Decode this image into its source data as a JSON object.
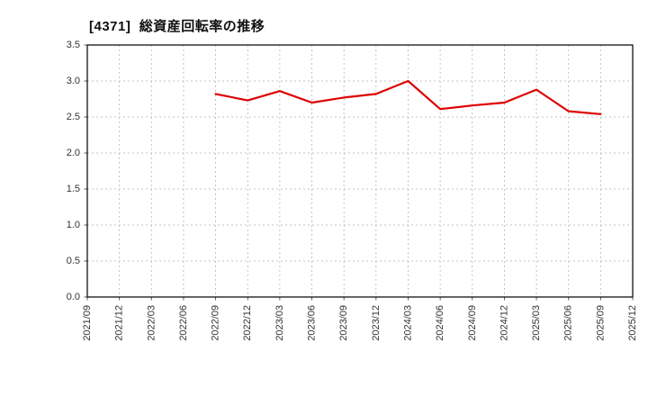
{
  "chart_data": {
    "type": "line",
    "title": "[4371]  総資産回転率の推移",
    "categories": [
      "2021/09",
      "2021/12",
      "2022/03",
      "2022/06",
      "2022/09",
      "2022/12",
      "2023/03",
      "2023/06",
      "2023/09",
      "2023/12",
      "2024/03",
      "2024/06",
      "2024/09",
      "2024/12",
      "2025/03",
      "2025/06",
      "2025/09",
      "2025/12"
    ],
    "series": [
      {
        "name": "総資産回転率",
        "color": "#dd0000",
        "points": [
          {
            "x": "2022/09",
            "y": 2.82
          },
          {
            "x": "2022/12",
            "y": 2.73
          },
          {
            "x": "2023/03",
            "y": 2.86
          },
          {
            "x": "2023/06",
            "y": 2.7
          },
          {
            "x": "2023/09",
            "y": 2.77
          },
          {
            "x": "2023/12",
            "y": 2.82
          },
          {
            "x": "2024/03",
            "y": 3.0
          },
          {
            "x": "2024/06",
            "y": 2.61
          },
          {
            "x": "2024/09",
            "y": 2.66
          },
          {
            "x": "2024/12",
            "y": 2.7
          },
          {
            "x": "2025/03",
            "y": 2.88
          },
          {
            "x": "2025/06",
            "y": 2.58
          },
          {
            "x": "2025/09",
            "y": 2.54
          }
        ]
      }
    ],
    "xlabel": "",
    "ylabel": "",
    "ylim": [
      0.0,
      3.5
    ],
    "y_ticks": [
      0.0,
      0.5,
      1.0,
      1.5,
      2.0,
      2.5,
      3.0,
      3.5
    ],
    "grid": true,
    "grid_style": "dashed",
    "legend": false,
    "colors": {
      "line": "#dd0000",
      "grid": "#b3b3b3",
      "border": "#000000",
      "tick_text": "#333333",
      "background": "#ffffff"
    }
  }
}
